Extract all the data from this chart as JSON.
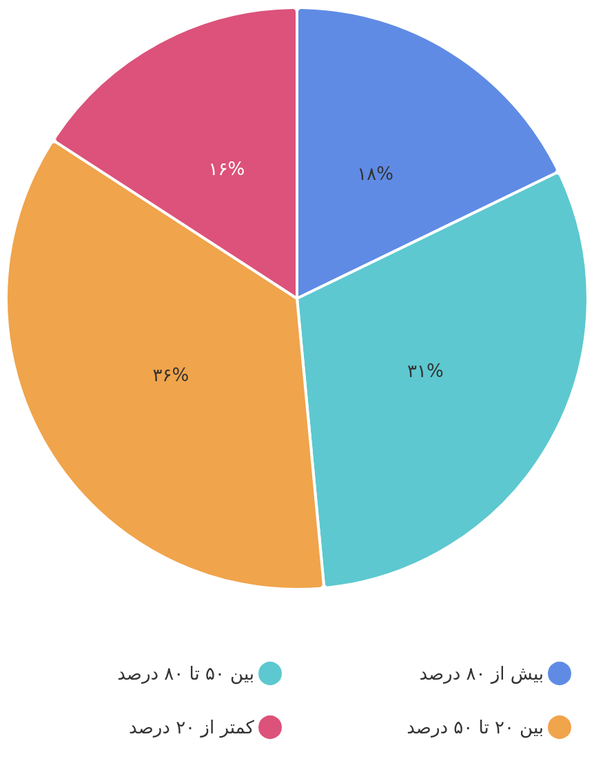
{
  "chart_data": {
    "type": "pie",
    "categories": [
      "بیش از ۸۰ درصد",
      "بین ۵۰ تا ۸۰ درصد",
      "بین ۲۰ تا ۵۰ درصد",
      "کمتر از ۲۰ درصد"
    ],
    "values": [
      18,
      31,
      36,
      16
    ],
    "colors": [
      "#5f8be5",
      "#5dc8d0",
      "#f0a44b",
      "#dc527a"
    ],
    "value_labels": [
      "۱۸%",
      "۳۱%",
      "۳۶%",
      "۱۶%"
    ],
    "legend": "bottom"
  }
}
